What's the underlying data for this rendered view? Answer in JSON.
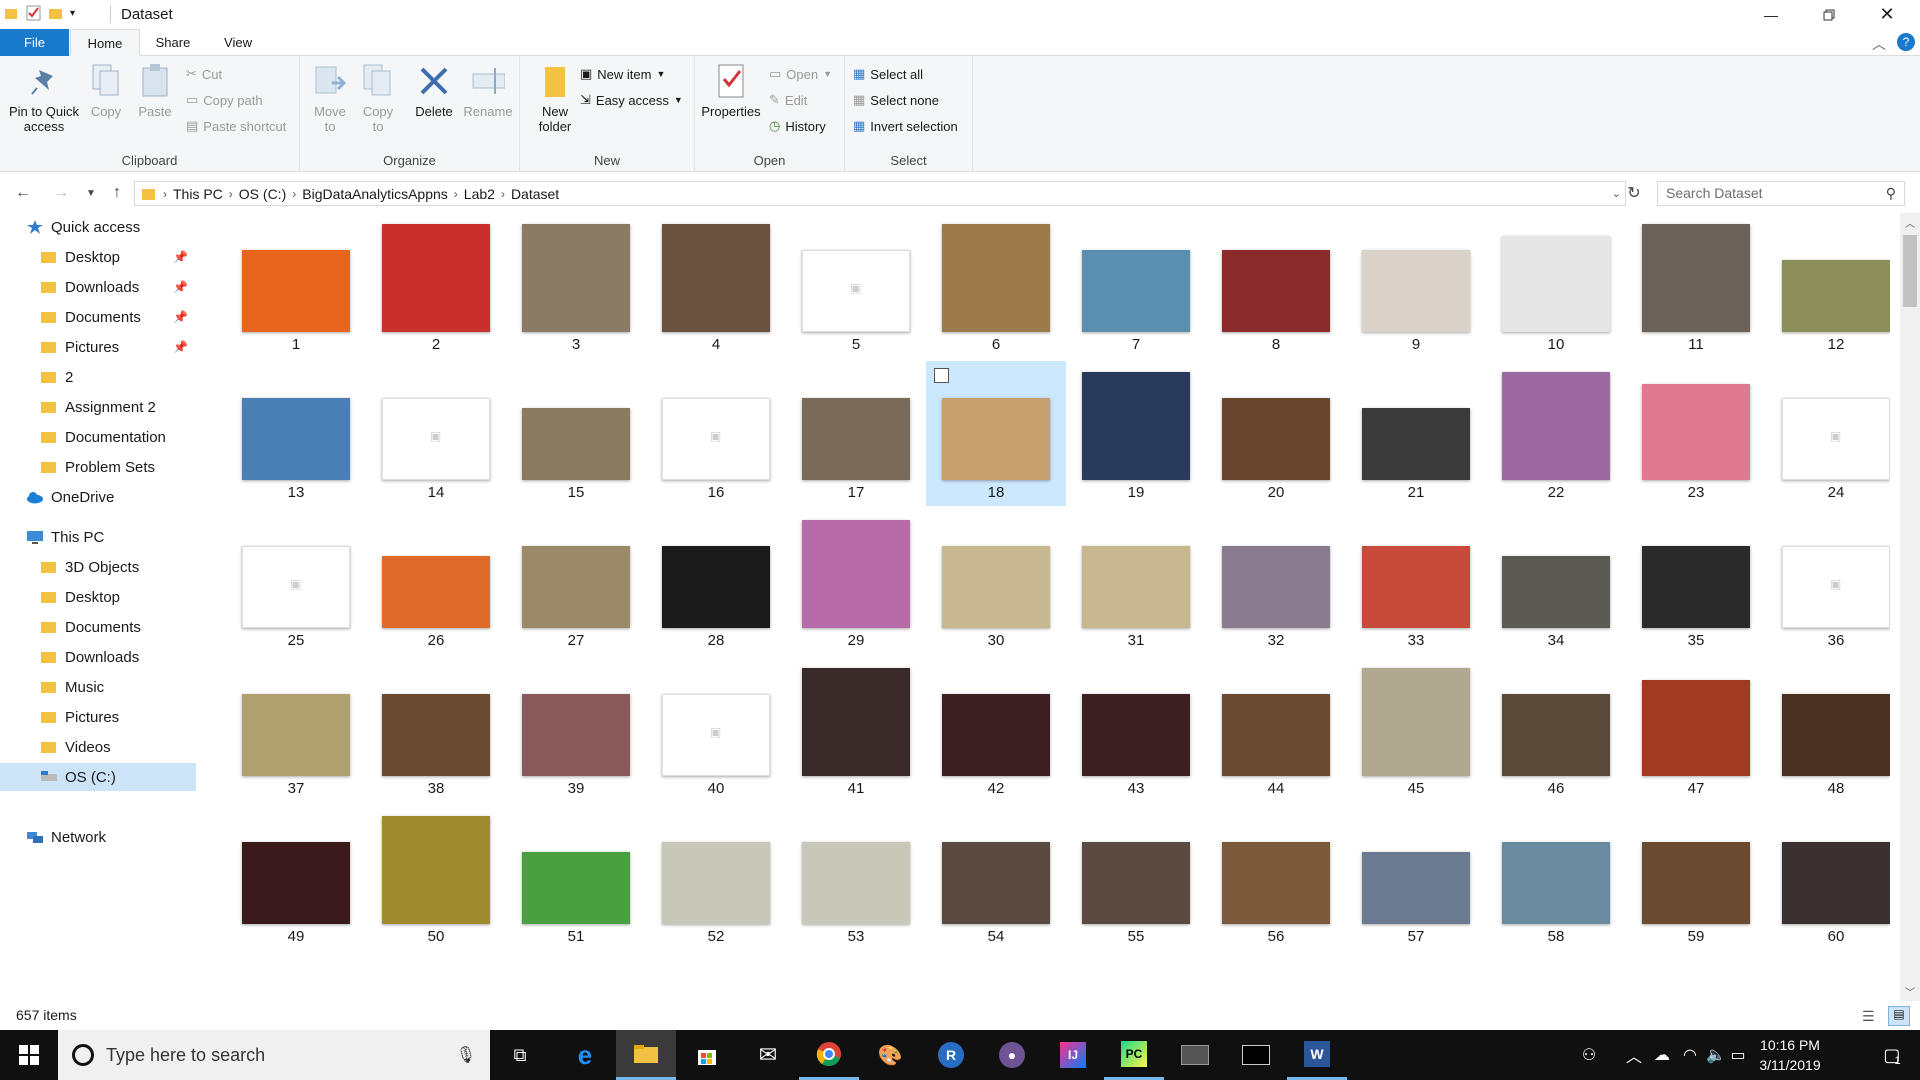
{
  "window": {
    "title": "Dataset"
  },
  "tabs": {
    "file": "File",
    "home": "Home",
    "share": "Share",
    "view": "View"
  },
  "ribbon": {
    "clipboard": {
      "label": "Clipboard",
      "pin": "Pin to Quick access",
      "copy": "Copy",
      "paste": "Paste",
      "cut": "Cut",
      "copy_path": "Copy path",
      "paste_shortcut": "Paste shortcut"
    },
    "organize": {
      "label": "Organize",
      "move_to": "Move to",
      "copy_to": "Copy to",
      "delete": "Delete",
      "rename": "Rename"
    },
    "new": {
      "label": "New",
      "new_folder": "New folder",
      "new_item": "New item",
      "easy_access": "Easy access"
    },
    "open": {
      "label": "Open",
      "properties": "Properties",
      "open": "Open",
      "edit": "Edit",
      "history": "History"
    },
    "select": {
      "label": "Select",
      "select_all": "Select all",
      "select_none": "Select none",
      "invert": "Invert selection"
    }
  },
  "address": {
    "crumbs": [
      "This PC",
      "OS (C:)",
      "BigDataAnalyticsAppns",
      "Lab2",
      "Dataset"
    ],
    "search_placeholder": "Search Dataset"
  },
  "nav": {
    "quick_access": "Quick access",
    "quick_items": [
      "Desktop",
      "Downloads",
      "Documents",
      "Pictures",
      "2",
      "Assignment 2",
      "Documentation",
      "Problem Sets"
    ],
    "onedrive": "OneDrive",
    "this_pc": "This PC",
    "pc_items": [
      "3D Objects",
      "Desktop",
      "Documents",
      "Downloads",
      "Music",
      "Pictures",
      "Videos",
      "OS (C:)"
    ],
    "network": "Network"
  },
  "files": [
    "1",
    "2",
    "3",
    "4",
    "5",
    "6",
    "7",
    "8",
    "9",
    "10",
    "11",
    "12",
    "13",
    "14",
    "15",
    "16",
    "17",
    "18",
    "19",
    "20",
    "21",
    "22",
    "23",
    "24",
    "25",
    "26",
    "27",
    "28",
    "29",
    "30",
    "31",
    "32",
    "33",
    "34",
    "35",
    "36",
    "37",
    "38",
    "39",
    "40",
    "41",
    "42",
    "43",
    "44",
    "45",
    "46",
    "47",
    "48",
    "49",
    "50",
    "51",
    "52",
    "53",
    "54",
    "55",
    "56",
    "57",
    "58",
    "59",
    "60"
  ],
  "status": {
    "item_count": "657 items"
  },
  "taskbar": {
    "search_placeholder": "Type here to search",
    "time": "10:16 PM",
    "date": "3/11/2019",
    "notifications": "1"
  }
}
